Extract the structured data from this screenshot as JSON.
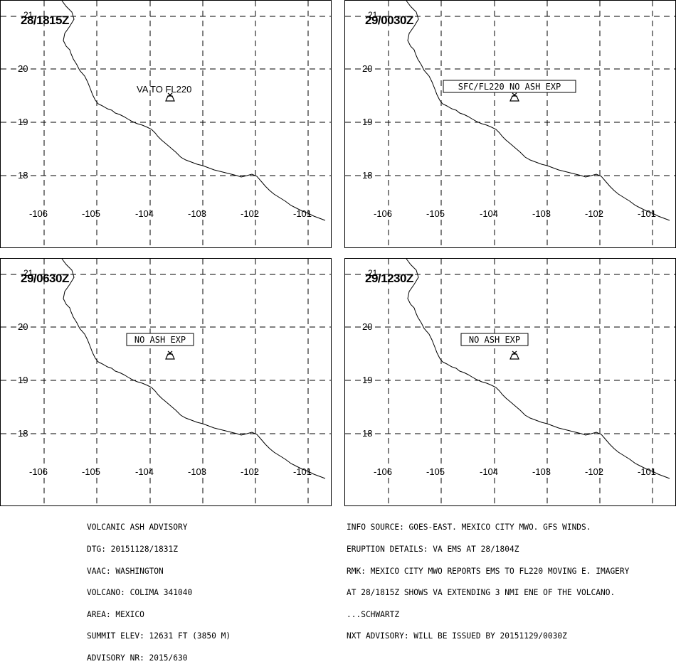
{
  "panels": [
    {
      "time": "28/1815Z",
      "annotation": "VA TO FL220",
      "boxed": false,
      "lat_labels": [
        "21",
        "20",
        "19",
        "18"
      ],
      "lon_labels": [
        "-106",
        "-105",
        "-104",
        "-103",
        "-102",
        "-101"
      ]
    },
    {
      "time": "29/0030Z",
      "annotation": "SFC/FL220 NO ASH EXP",
      "boxed": true,
      "lat_labels": [
        "21",
        "20",
        "19",
        "18"
      ],
      "lon_labels": [
        "-106",
        "-105",
        "-104",
        "-103",
        "-102",
        "-101"
      ]
    },
    {
      "time": "29/0630Z",
      "annotation": "NO ASH EXP",
      "boxed": true,
      "lat_labels": [
        "21",
        "20",
        "19",
        "18"
      ],
      "lon_labels": [
        "-106",
        "-105",
        "-104",
        "-103",
        "-102",
        "-101"
      ]
    },
    {
      "time": "29/1230Z",
      "annotation": "NO ASH EXP",
      "boxed": true,
      "lat_labels": [
        "21",
        "20",
        "19",
        "18"
      ],
      "lon_labels": [
        "-106",
        "-105",
        "-104",
        "-103",
        "-102",
        "-101"
      ]
    }
  ],
  "advisory_left": [
    "VOLCANIC ASH ADVISORY",
    "DTG: 20151128/1831Z",
    "VAAC: WASHINGTON",
    "VOLCANO: COLIMA 341040",
    "AREA: MEXICO",
    "SUMMIT ELEV: 12631 FT (3850 M)",
    "ADVISORY NR: 2015/630"
  ],
  "advisory_right": [
    "INFO SOURCE: GOES-EAST. MEXICO CITY MWO. GFS WINDS.",
    "ERUPTION DETAILS: VA EMS AT 28/1804Z",
    "RMK: MEXICO CITY MWO REPORTS EMS TO FL220 MOVING E. IMAGERY",
    "AT 28/1815Z SHOWS VA EXTENDING 3 NMI ENE OF THE VOLCANO.",
    "...SCHWARTZ",
    "NXT ADVISORY: WILL BE ISSUED BY 20151129/0030Z"
  ],
  "colors": {
    "line": "#000000",
    "background": "#ffffff"
  }
}
